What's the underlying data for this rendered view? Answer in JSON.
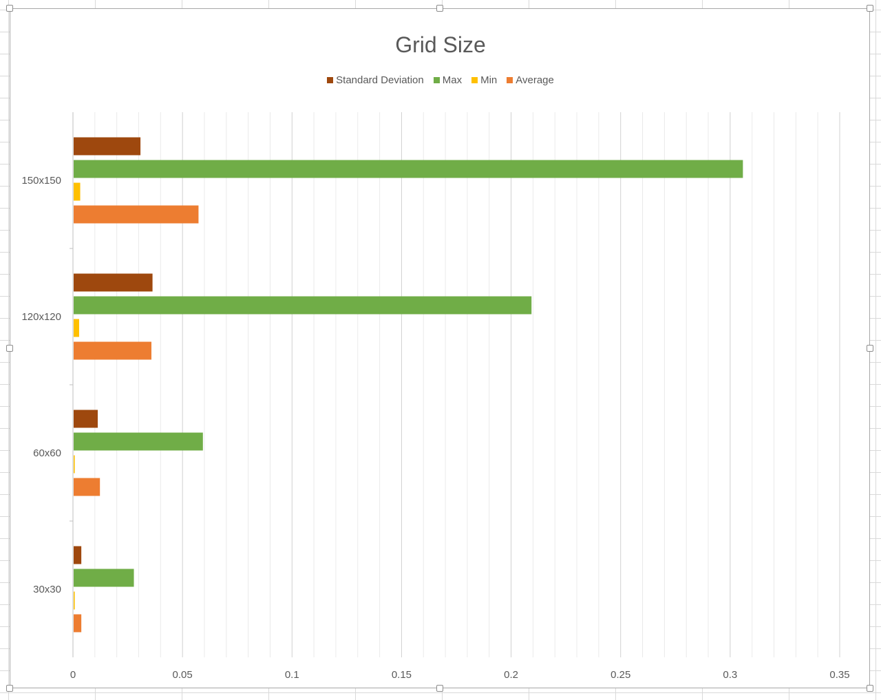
{
  "chart_data": {
    "type": "bar",
    "orientation": "horizontal",
    "title": "Grid Size",
    "categories": [
      "30x30",
      "60x60",
      "120x120",
      "150x150"
    ],
    "series": [
      {
        "name": "Standard Deviation",
        "color": "#9e480e",
        "values": [
          0.0035,
          0.011,
          0.036,
          0.0305
        ]
      },
      {
        "name": "Max",
        "color": "#70ad47",
        "values": [
          0.0275,
          0.059,
          0.209,
          0.3055
        ]
      },
      {
        "name": "Min",
        "color": "#ffc000",
        "values": [
          0.0005,
          0.0005,
          0.0025,
          0.003
        ]
      },
      {
        "name": "Average",
        "color": "#ed7d31",
        "values": [
          0.0035,
          0.012,
          0.0355,
          0.057
        ]
      }
    ],
    "legend_order": [
      "Standard Deviation",
      "Max",
      "Min",
      "Average"
    ],
    "xlim": [
      0,
      0.35
    ],
    "xticks": [
      "0",
      "0.05",
      "0.1",
      "0.15",
      "0.2",
      "0.25",
      "0.3",
      "0.35"
    ],
    "xtick_values": [
      0,
      0.05,
      0.1,
      0.15,
      0.2,
      0.25,
      0.3,
      0.35
    ],
    "grid": "vertical major and minor",
    "legend_position": "top"
  }
}
